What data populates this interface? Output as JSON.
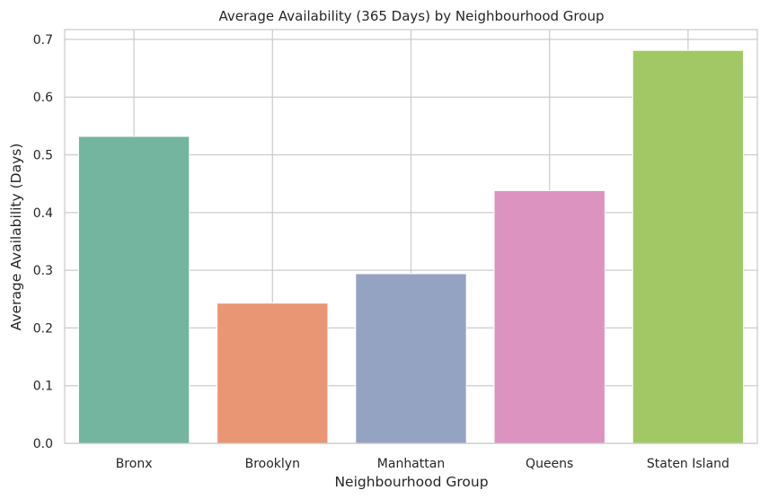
{
  "chart_data": {
    "type": "bar",
    "title": "Average Availability (365 Days) by Neighbourhood Group",
    "xlabel": "Neighbourhood Group",
    "ylabel": "Average Availability (Days)",
    "categories": [
      "Bronx",
      "Brooklyn",
      "Manhattan",
      "Queens",
      "Staten Island"
    ],
    "values": [
      0.532,
      0.243,
      0.294,
      0.438,
      0.681
    ],
    "colors": [
      "#73b59f",
      "#e99675",
      "#95a3c3",
      "#dc93bf",
      "#a2c865"
    ],
    "ylim": [
      0,
      0.717
    ],
    "yticks": [
      0.0,
      0.1,
      0.2,
      0.3,
      0.4,
      0.5,
      0.6,
      0.7
    ],
    "ytick_labels": [
      "0.0",
      "0.1",
      "0.2",
      "0.3",
      "0.4",
      "0.5",
      "0.6",
      "0.7"
    ],
    "grid": true,
    "legend": "none"
  }
}
